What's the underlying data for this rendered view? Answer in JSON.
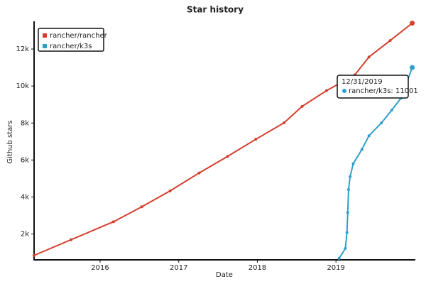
{
  "chart_data": {
    "type": "line",
    "title": "Star history",
    "xlabel": "Date",
    "ylabel": "Github stars",
    "xlim": [
      2015.16,
      2020.01
    ],
    "xticks": [
      2016,
      2017,
      2018,
      2019
    ],
    "ylim": [
      600,
      13500
    ],
    "yticks": [
      {
        "value": 2000,
        "label": "2k"
      },
      {
        "value": 4000,
        "label": "4k"
      },
      {
        "value": 6000,
        "label": "6k"
      },
      {
        "value": 8000,
        "label": "8k"
      },
      {
        "value": 10000,
        "label": "10k"
      },
      {
        "value": 12000,
        "label": "12k"
      }
    ],
    "legend": "upper left",
    "series": [
      {
        "name": "rancher/rancher",
        "color": "#d33f2c",
        "x": [
          2015.16,
          2015.63,
          2016.17,
          2016.53,
          2016.89,
          2017.26,
          2017.62,
          2017.98,
          2018.34,
          2018.57,
          2018.88,
          2019.24,
          2019.42,
          2019.69,
          2019.97
        ],
        "values": [
          840,
          1690,
          2660,
          3470,
          4330,
          5300,
          6190,
          7120,
          8010,
          8900,
          9750,
          10600,
          11570,
          12460,
          13400
        ]
      },
      {
        "name": "rancher/k3s",
        "color": "#2f9fcb",
        "x": [
          2019.04,
          2019.12,
          2019.14,
          2019.15,
          2019.16,
          2019.18,
          2019.22,
          2019.33,
          2019.42,
          2019.58,
          2019.71,
          2019.83,
          2019.97
        ],
        "values": [
          680,
          1220,
          2080,
          3160,
          4400,
          5100,
          5800,
          6570,
          7310,
          8010,
          8700,
          9360,
          11001
        ]
      }
    ],
    "tooltip": {
      "title": "12/31/2019",
      "text": "rancher/k3s: 11001"
    }
  }
}
